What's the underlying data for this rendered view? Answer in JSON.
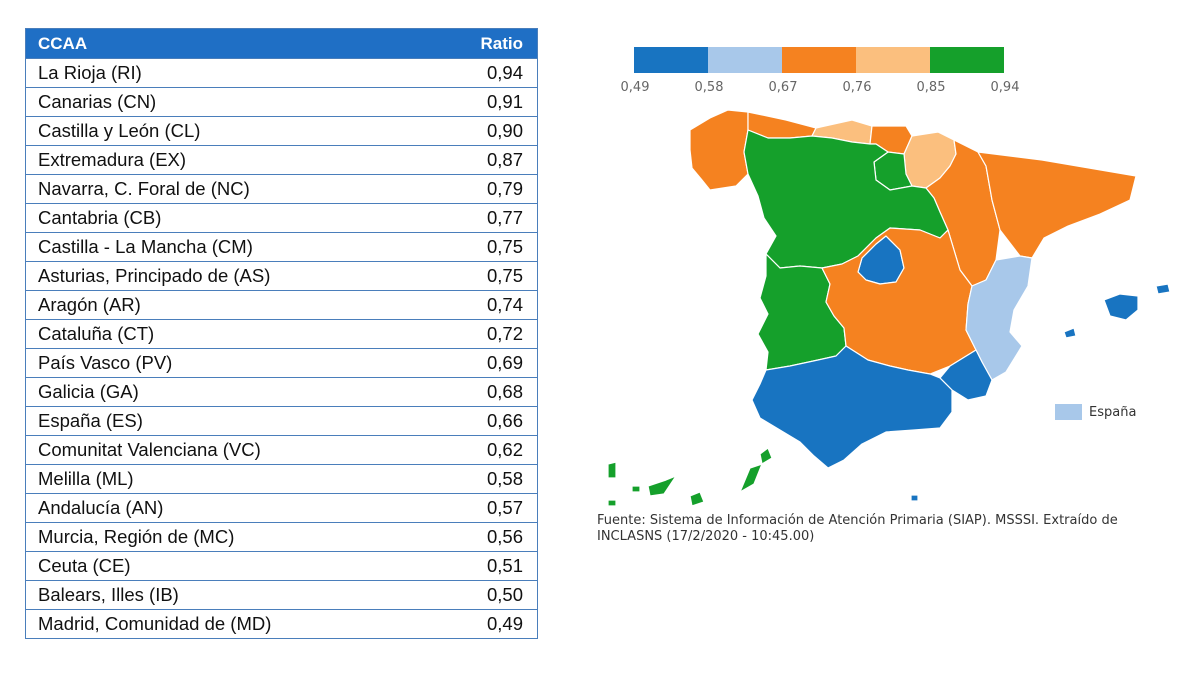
{
  "table": {
    "headers": {
      "region": "CCAA",
      "ratio": "Ratio"
    },
    "rows": [
      {
        "name": "La Rioja (RI)",
        "value": "0,94"
      },
      {
        "name": "Canarias (CN)",
        "value": "0,91"
      },
      {
        "name": "Castilla y León (CL)",
        "value": "0,90"
      },
      {
        "name": "Extremadura (EX)",
        "value": "0,87"
      },
      {
        "name": "Navarra, C. Foral de (NC)",
        "value": "0,79"
      },
      {
        "name": "Cantabria (CB)",
        "value": "0,77"
      },
      {
        "name": "Castilla - La Mancha (CM)",
        "value": "0,75"
      },
      {
        "name": "Asturias, Principado de (AS)",
        "value": "0,75"
      },
      {
        "name": "Aragón (AR)",
        "value": "0,74"
      },
      {
        "name": "Cataluña (CT)",
        "value": "0,72"
      },
      {
        "name": "País Vasco (PV)",
        "value": "0,69"
      },
      {
        "name": "Galicia (GA)",
        "value": "0,68"
      },
      {
        "name": "España (ES)",
        "value": "0,66"
      },
      {
        "name": "Comunitat Valenciana (VC)",
        "value": "0,62"
      },
      {
        "name": "Melilla (ML)",
        "value": "0,58"
      },
      {
        "name": "Andalucía (AN)",
        "value": "0,57"
      },
      {
        "name": "Murcia, Región de (MC)",
        "value": "0,56"
      },
      {
        "name": "Ceuta (CE)",
        "value": "0,51"
      },
      {
        "name": "Balears, Illes (IB)",
        "value": "0,50"
      },
      {
        "name": "Madrid, Comunidad de (MD)",
        "value": "0,49"
      }
    ]
  },
  "legend": {
    "colors": [
      "#1874c1",
      "#a8c8ea",
      "#f58220",
      "#fbbf7e",
      "#15a02b"
    ],
    "ticks": [
      "0,49",
      "0,58",
      "0,67",
      "0,76",
      "0,85",
      "0,94"
    ]
  },
  "map": {
    "regions": [
      {
        "name": "Galicia",
        "color": "#f58220"
      },
      {
        "name": "Asturias",
        "color": "#f58220"
      },
      {
        "name": "Cantabria",
        "color": "#fbbf7e"
      },
      {
        "name": "País Vasco",
        "color": "#f58220"
      },
      {
        "name": "Navarra",
        "color": "#fbbf7e"
      },
      {
        "name": "La Rioja",
        "color": "#15a02b"
      },
      {
        "name": "Aragón",
        "color": "#f58220"
      },
      {
        "name": "Cataluña",
        "color": "#f58220"
      },
      {
        "name": "Castilla y León",
        "color": "#15a02b"
      },
      {
        "name": "Madrid",
        "color": "#1874c1"
      },
      {
        "name": "Extremadura",
        "color": "#15a02b"
      },
      {
        "name": "Castilla - La Mancha",
        "color": "#f58220"
      },
      {
        "name": "Comunitat Valenciana",
        "color": "#a8c8ea"
      },
      {
        "name": "Murcia",
        "color": "#1874c1"
      },
      {
        "name": "Andalucía",
        "color": "#1874c1"
      },
      {
        "name": "Illes Balears",
        "color": "#1874c1"
      },
      {
        "name": "Canarias",
        "color": "#15a02b"
      },
      {
        "name": "Ceuta",
        "color": "#1874c1"
      },
      {
        "name": "Melilla",
        "color": "#1874c1"
      }
    ],
    "spain_legend": {
      "label": "España",
      "color": "#a8c8ea"
    }
  },
  "source_note": "Fuente: Sistema de Información de Atención Primaria (SIAP). MSSSI. Extraído de INCLASNS (17/2/2020 - 10:45.00)"
}
